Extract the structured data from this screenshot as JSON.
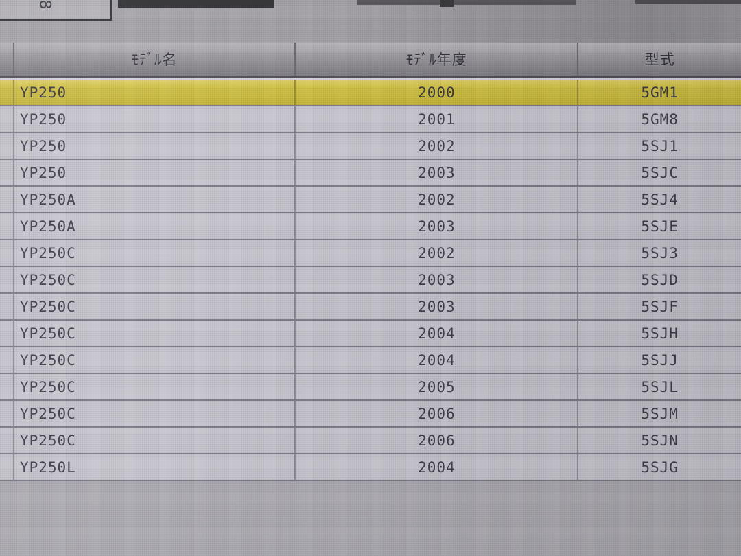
{
  "top_area": {
    "fragment_text": "8"
  },
  "table": {
    "headers": {
      "model_name": "ﾓﾃﾞﾙ名",
      "model_year": "ﾓﾃﾞﾙ年度",
      "model_code": "型式"
    },
    "selected_row_index": 0,
    "selection_color": "#d2c348",
    "rows": [
      {
        "model_name": "YP250",
        "model_year": "2000",
        "model_code": "5GM1"
      },
      {
        "model_name": "YP250",
        "model_year": "2001",
        "model_code": "5GM8"
      },
      {
        "model_name": "YP250",
        "model_year": "2002",
        "model_code": "5SJ1"
      },
      {
        "model_name": "YP250",
        "model_year": "2003",
        "model_code": "5SJC"
      },
      {
        "model_name": "YP250A",
        "model_year": "2002",
        "model_code": "5SJ4"
      },
      {
        "model_name": "YP250A",
        "model_year": "2003",
        "model_code": "5SJE"
      },
      {
        "model_name": "YP250C",
        "model_year": "2002",
        "model_code": "5SJ3"
      },
      {
        "model_name": "YP250C",
        "model_year": "2003",
        "model_code": "5SJD"
      },
      {
        "model_name": "YP250C",
        "model_year": "2003",
        "model_code": "5SJF"
      },
      {
        "model_name": "YP250C",
        "model_year": "2004",
        "model_code": "5SJH"
      },
      {
        "model_name": "YP250C",
        "model_year": "2004",
        "model_code": "5SJJ"
      },
      {
        "model_name": "YP250C",
        "model_year": "2005",
        "model_code": "5SJL"
      },
      {
        "model_name": "YP250C",
        "model_year": "2006",
        "model_code": "5SJM"
      },
      {
        "model_name": "YP250C",
        "model_year": "2006",
        "model_code": "5SJN"
      },
      {
        "model_name": "YP250L",
        "model_year": "2004",
        "model_code": "5SJG"
      }
    ]
  }
}
